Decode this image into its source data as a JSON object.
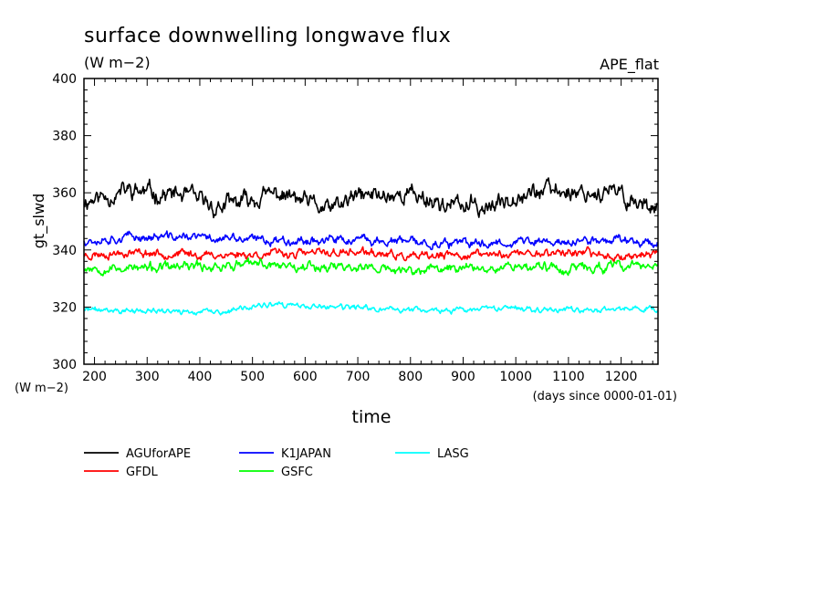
{
  "chart_data": {
    "type": "line",
    "title": "surface downwelling longwave flux",
    "subtitle": "(W m−2)",
    "experiment": "APE_flat",
    "ylabel": "gt_slwd",
    "yunits": "(W m−2)",
    "xlabel": "time",
    "xunits": "(days since 0000-01-01)",
    "xlim": [
      180,
      1270
    ],
    "ylim": [
      300,
      400
    ],
    "xticks": [
      200,
      300,
      400,
      500,
      600,
      700,
      800,
      900,
      1000,
      1100,
      1200
    ],
    "yticks": [
      300,
      320,
      340,
      360,
      380,
      400
    ],
    "legend_position": "bottom",
    "series": [
      {
        "name": "AGUforAPE",
        "color": "#000000",
        "mean": 357.5,
        "amp": 2.6,
        "seed": 11,
        "x": [
          180,
          265,
          375,
          430,
          550,
          645,
          700,
          800,
          870,
          960,
          1000,
          1100,
          1190,
          1250,
          1265
        ],
        "y": [
          357,
          364,
          360,
          352,
          362,
          350,
          360,
          362,
          354,
          352,
          363,
          364,
          362,
          353,
          357
        ]
      },
      {
        "name": "GFDL",
        "color": "#ff0000",
        "mean": 338.5,
        "amp": 1.2,
        "seed": 23,
        "x": [
          180,
          260,
          420,
          600,
          700,
          810,
          900,
          1000,
          1100,
          1200,
          1270
        ],
        "y": [
          338,
          340,
          338,
          339,
          340,
          336,
          338,
          339,
          340,
          337,
          339
        ]
      },
      {
        "name": "K1JAPAN",
        "color": "#0000ff",
        "mean": 343.0,
        "amp": 1.3,
        "seed": 37,
        "x": [
          180,
          255,
          385,
          500,
          650,
          750,
          900,
          1000,
          1100,
          1200,
          1265
        ],
        "y": [
          344,
          346,
          346,
          344,
          344,
          343,
          341,
          343,
          342,
          345,
          342
        ]
      },
      {
        "name": "GSFC",
        "color": "#00ff00",
        "mean": 334.0,
        "amp": 1.4,
        "seed": 53,
        "x": [
          180,
          300,
          520,
          700,
          800,
          900,
          1000,
          1100,
          1200,
          1270
        ],
        "y": [
          334,
          333,
          336,
          334,
          331,
          334,
          335,
          333,
          334,
          336
        ]
      },
      {
        "name": "LASG",
        "color": "#00ffff",
        "mean": 319.3,
        "amp": 0.8,
        "seed": 71,
        "x": [
          180,
          270,
          450,
          510,
          700,
          890,
          1000,
          1100,
          1200,
          1260,
          1270
        ],
        "y": [
          319,
          318,
          317,
          322,
          320,
          318,
          320,
          319,
          319,
          321,
          319
        ]
      }
    ]
  }
}
